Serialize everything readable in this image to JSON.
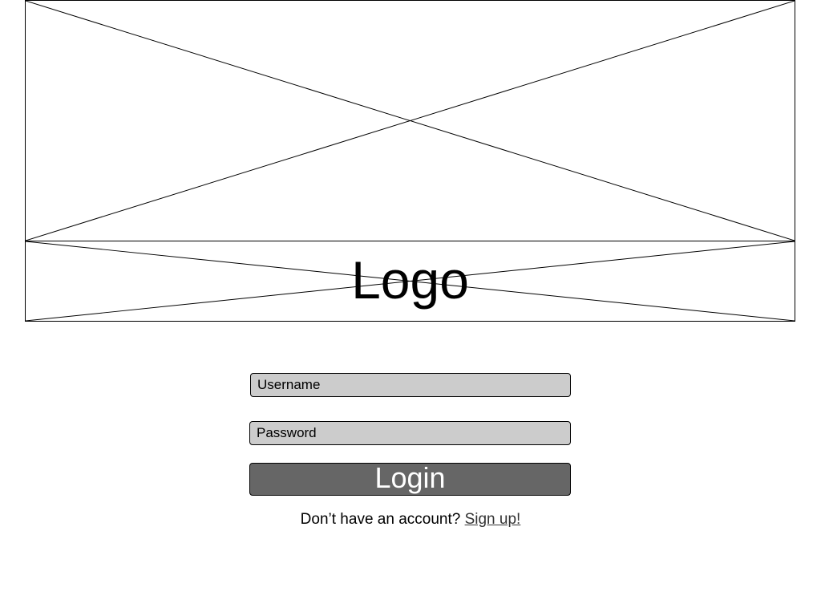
{
  "header": {
    "hero_image_icon": "image-placeholder-icon",
    "logo": {
      "text": "Logo",
      "icon": "image-placeholder-icon"
    }
  },
  "login_form": {
    "username": {
      "placeholder": "Username",
      "value": ""
    },
    "password": {
      "placeholder": "Password",
      "value": ""
    },
    "login_label": "Login"
  },
  "signup": {
    "prompt": "Don’t have an account?",
    "link_label": "Sign up!"
  },
  "colors": {
    "field_background": "#cccccc",
    "button_background": "#666666",
    "button_text": "#ffffff",
    "border": "#000000",
    "link": "#333333"
  }
}
